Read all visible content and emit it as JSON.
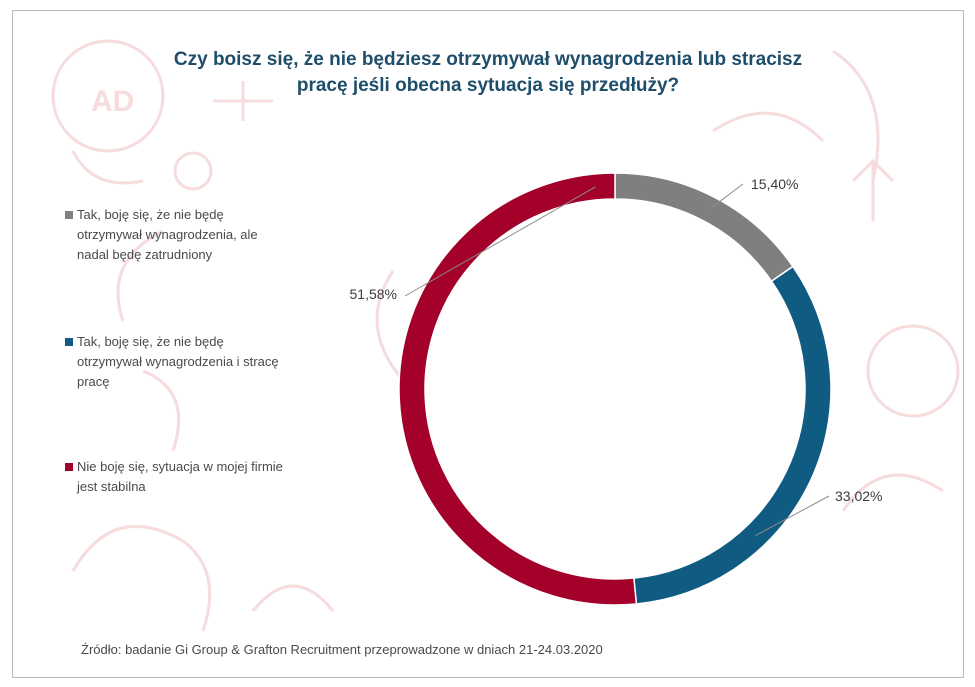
{
  "chart_data": {
    "type": "pie",
    "donut": true,
    "title_line1": "Czy boisz się,  że nie będziesz otrzymywał wynagrodzenia lub stracisz",
    "title_line2": "pracę jeśli obecna sytuacja się przedłuży?",
    "slices": [
      {
        "label_line1": "Tak, boję się, że nie będę",
        "label_line2": "otrzymywał wynagrodzenia, ale",
        "label_line3": "nadal będę zatrudniony",
        "value": 15.4,
        "value_label": "15,40%",
        "color": "#7f7f7f"
      },
      {
        "label_line1": "Tak, boję się, że nie będę",
        "label_line2": "otrzymywał wynagrodzenia i stracę",
        "label_line3": "pracę",
        "value": 33.02,
        "value_label": "33,02%",
        "color": "#0f5b82"
      },
      {
        "label_line1": "Nie boję się, sytuacja w mojej firmie",
        "label_line2": "jest stabilna",
        "label_line3": "",
        "value": 51.58,
        "value_label": "51,58%",
        "color": "#a3002a"
      }
    ],
    "legend_position": "left",
    "source": "Źródło: badanie Gi Group & Grafton Recruitment przeprowadzone w dniach 21-24.03.2020"
  }
}
